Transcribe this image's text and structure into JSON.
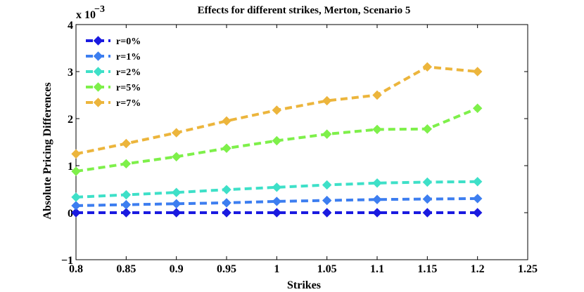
{
  "chart_data": {
    "type": "line",
    "title": "Effects for different strikes, Merton, Scenario 5",
    "xlabel": "Strikes",
    "ylabel": "Absolute Pricing Differences",
    "y_exponent_base": "x 10",
    "y_exponent_power": "−3",
    "xlim": [
      0.8,
      1.25
    ],
    "ylim": [
      -1,
      4
    ],
    "x_ticks": [
      0.8,
      0.85,
      0.9,
      0.95,
      1.0,
      1.05,
      1.1,
      1.15,
      1.2,
      1.25
    ],
    "x_tick_labels": [
      "0.8",
      "0.85",
      "0.9",
      "0.95",
      "1",
      "1.05",
      "1.1",
      "1.15",
      "1.2",
      "1.25"
    ],
    "y_ticks": [
      -1,
      0,
      1,
      2,
      3,
      4
    ],
    "y_tick_labels": [
      "−1",
      "0",
      "1",
      "2",
      "3",
      "4"
    ],
    "legend_position": "top-left",
    "x": [
      0.8,
      0.85,
      0.9,
      0.95,
      1.0,
      1.05,
      1.1,
      1.15,
      1.2
    ],
    "series": [
      {
        "name": "r=0%",
        "color": "#1a1ae0",
        "values": [
          0.0,
          0.0,
          0.0,
          0.0,
          0.0,
          0.0,
          0.0,
          0.0,
          0.0
        ]
      },
      {
        "name": "r=1%",
        "color": "#3d7ef0",
        "values": [
          0.15,
          0.17,
          0.19,
          0.21,
          0.24,
          0.26,
          0.28,
          0.29,
          0.3
        ]
      },
      {
        "name": "r=2%",
        "color": "#3ee0c8",
        "values": [
          0.33,
          0.38,
          0.43,
          0.49,
          0.54,
          0.59,
          0.63,
          0.65,
          0.66
        ]
      },
      {
        "name": "r=5%",
        "color": "#7ef04a",
        "values": [
          0.88,
          1.04,
          1.19,
          1.37,
          1.53,
          1.67,
          1.77,
          1.78,
          2.22
        ]
      },
      {
        "name": "r=7%",
        "color": "#ecb53c",
        "values": [
          1.25,
          1.47,
          1.7,
          1.95,
          2.18,
          2.38,
          2.5,
          3.1,
          3.0
        ]
      }
    ]
  }
}
